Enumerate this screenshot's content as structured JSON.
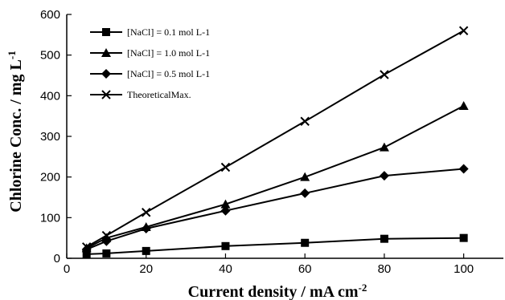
{
  "chart_data": {
    "type": "line",
    "xlabel": "Current density / mA cm",
    "xlabel_sup": "-2",
    "ylabel": "Chlorine Conc. / mg L",
    "ylabel_sup": "-1",
    "xlim": [
      0,
      110
    ],
    "ylim": [
      0,
      600
    ],
    "xticks": [
      0,
      20,
      40,
      60,
      80,
      100
    ],
    "yticks": [
      0,
      100,
      200,
      300,
      400,
      500,
      600
    ],
    "grid": false,
    "legend_position": "top-left",
    "series": [
      {
        "name": "[NaCl] = 0.1 mol L-1",
        "marker": "square",
        "x": [
          5,
          10,
          20,
          40,
          60,
          80,
          100
        ],
        "y": [
          10,
          12,
          18,
          30,
          38,
          48,
          50
        ]
      },
      {
        "name": "[NaCl] = 1.0 mol L-1",
        "marker": "triangle",
        "x": [
          5,
          10,
          20,
          40,
          60,
          80,
          100
        ],
        "y": [
          25,
          50,
          77,
          133,
          200,
          273,
          375
        ]
      },
      {
        "name": "[NaCl] = 0.5 mol L-1",
        "marker": "diamond",
        "x": [
          5,
          10,
          20,
          40,
          60,
          80,
          100
        ],
        "y": [
          22,
          42,
          73,
          117,
          160,
          203,
          220
        ]
      },
      {
        "name": "TheoreticalMax.",
        "marker": "cross",
        "x": [
          5,
          10,
          20,
          40,
          60,
          80,
          100
        ],
        "y": [
          28,
          56,
          113,
          224,
          337,
          452,
          560
        ]
      }
    ]
  }
}
